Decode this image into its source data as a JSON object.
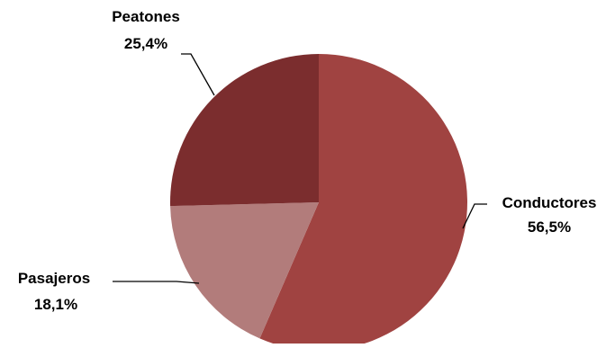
{
  "chart_data": {
    "type": "pie",
    "title": "",
    "slices": [
      {
        "label": "Conductores",
        "value": 56.5,
        "value_label": "56,5%",
        "color": "#A04341"
      },
      {
        "label": "Pasajeros",
        "value": 18.1,
        "value_label": "18,1%",
        "color": "#B27C7B"
      },
      {
        "label": "Peatones",
        "value": 25.4,
        "value_label": "25,4%",
        "color": "#7B2D2E"
      }
    ],
    "start_angle_deg": 0,
    "direction": "clockwise",
    "legend": "none",
    "labels": "outside-with-leader-lines"
  }
}
